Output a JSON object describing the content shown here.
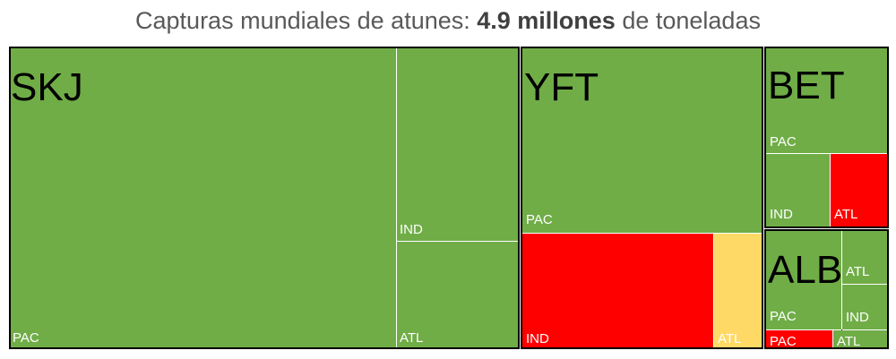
{
  "title": {
    "prefix": "Capturas mundiales de atunes: ",
    "bold": "4.9 millones",
    "suffix": " de toneladas"
  },
  "chart_data": {
    "type": "treemap",
    "colors": {
      "green": "#70ad47",
      "red": "#ff0000",
      "yellow": "#ffd966"
    },
    "species": [
      {
        "name": "SKJ",
        "label": "SKJ",
        "stocks": [
          {
            "label": "PAC",
            "status": "green"
          },
          {
            "label": "IND",
            "status": "green"
          },
          {
            "label": "ATL",
            "status": "green"
          }
        ]
      },
      {
        "name": "YFT",
        "label": "YFT",
        "stocks": [
          {
            "label": "PAC",
            "status": "green"
          },
          {
            "label": "IND",
            "status": "red"
          },
          {
            "label": "ATL",
            "status": "yellow"
          }
        ]
      },
      {
        "name": "BET",
        "label": "BET",
        "stocks": [
          {
            "label": "PAC",
            "status": "green"
          },
          {
            "label": "IND",
            "status": "green"
          },
          {
            "label": "ATL",
            "status": "red"
          }
        ]
      },
      {
        "name": "ALB",
        "label": "ALB",
        "stocks": [
          {
            "label": "PAC",
            "status": "green"
          },
          {
            "label": "ATL",
            "status": "green"
          },
          {
            "label": "IND",
            "status": "green"
          },
          {
            "label": "PAC",
            "status": "red"
          },
          {
            "label": "ATL",
            "status": "green"
          }
        ]
      }
    ]
  }
}
